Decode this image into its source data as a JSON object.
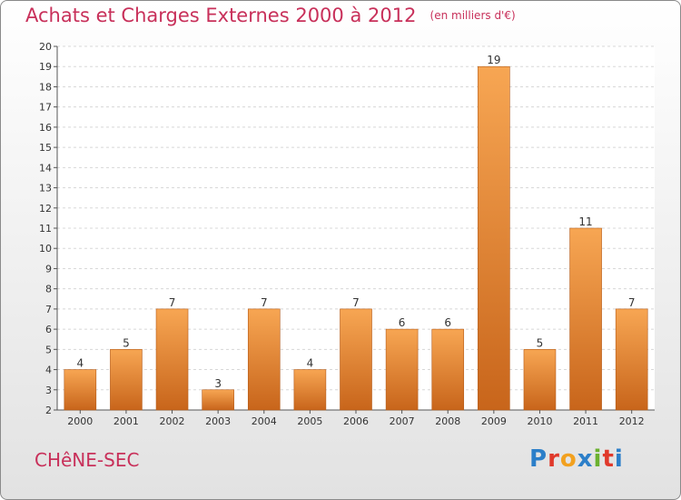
{
  "title": "Achats et Charges Externes 2000 à 2012",
  "unit": "(en milliers d'€)",
  "commune": "CHêNE-SEC",
  "brand": {
    "letters": [
      "P",
      "r",
      "o",
      "x",
      "i",
      "t",
      "i"
    ],
    "colors": [
      "#2c7fc9",
      "#e0392b",
      "#f2a11f",
      "#2c7fc9",
      "#6bb12f",
      "#e0392b",
      "#2c7fc9"
    ]
  },
  "colors": {
    "bar_light": "#f7a653",
    "bar_dark": "#c8651b",
    "accent": "#c8305a"
  },
  "chart_data": {
    "type": "bar",
    "categories": [
      "2000",
      "2001",
      "2002",
      "2003",
      "2004",
      "2005",
      "2006",
      "2007",
      "2008",
      "2009",
      "2010",
      "2011",
      "2012"
    ],
    "values": [
      4,
      5,
      7,
      3,
      7,
      4,
      7,
      6,
      6,
      19,
      5,
      11,
      7
    ],
    "title": "Achats et Charges Externes 2000 à 2012",
    "ylim": [
      2,
      20
    ],
    "yticks": [
      2,
      3,
      4,
      5,
      6,
      7,
      8,
      9,
      10,
      11,
      12,
      13,
      14,
      15,
      16,
      17,
      18,
      19,
      20
    ],
    "grid": true,
    "data_labels": true
  }
}
